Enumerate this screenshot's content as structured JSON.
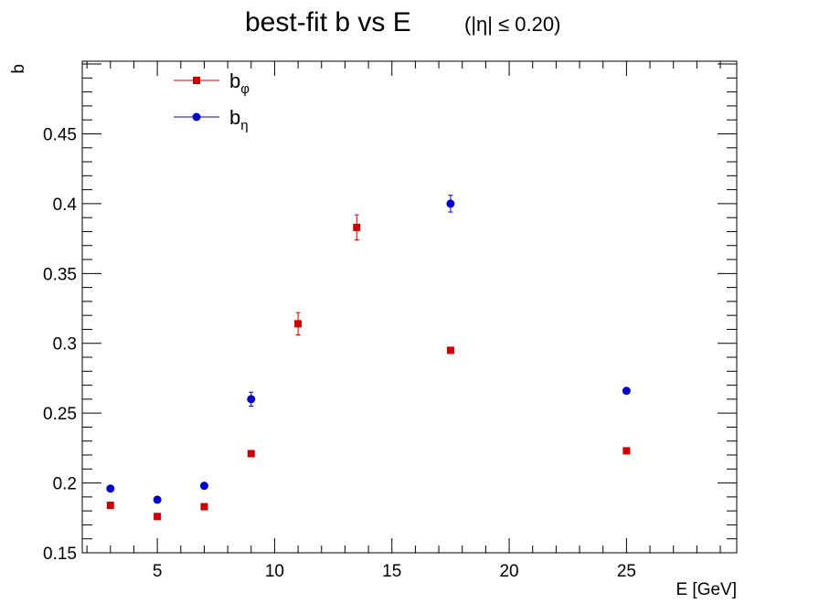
{
  "chart_data": {
    "type": "scatter",
    "title": "best-fit  b  vs  E",
    "title_condition": "(|η| ≤ 0.20)",
    "xlabel": "E  [GeV]",
    "ylabel": "b",
    "xlim": [
      1.8,
      29.7
    ],
    "ylim": [
      0.15,
      0.502
    ],
    "x_ticks": [
      5,
      10,
      15,
      20,
      25
    ],
    "y_ticks": [
      0.15,
      0.2,
      0.25,
      0.3,
      0.35,
      0.4,
      0.45
    ],
    "x_tick_labels": [
      "5",
      "10",
      "15",
      "20",
      "25"
    ],
    "y_tick_labels": [
      "0.15",
      "0.2",
      "0.25",
      "0.3",
      "0.35",
      "0.4",
      "0.45"
    ],
    "grid": false,
    "legend_position": "top-left",
    "series": [
      {
        "name": "b",
        "subscript": "φ",
        "color": "#cc0000",
        "marker": "square",
        "x": [
          3,
          5,
          7,
          9,
          11,
          13.5,
          17.5,
          25
        ],
        "y": [
          0.184,
          0.176,
          0.183,
          0.221,
          0.314,
          0.383,
          0.295,
          0.223
        ],
        "yerr": [
          0.001,
          0.001,
          0.001,
          0.002,
          0.008,
          0.009,
          0.002,
          0.001
        ]
      },
      {
        "name": "b",
        "subscript": "η",
        "color": "#0000cc",
        "marker": "circle",
        "x": [
          3,
          5,
          7,
          9,
          17.5,
          25
        ],
        "y": [
          0.196,
          0.188,
          0.198,
          0.26,
          0.4,
          0.266
        ],
        "yerr": [
          0.001,
          0.001,
          0.001,
          0.005,
          0.006,
          0.001
        ]
      }
    ]
  }
}
